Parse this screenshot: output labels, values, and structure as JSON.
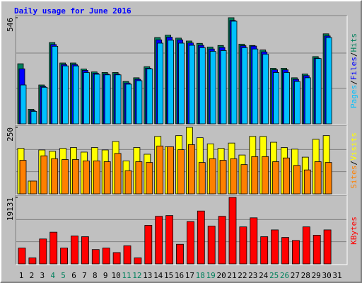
{
  "title": "Daily usage for June 2016",
  "legend_separator": "/",
  "categories": [
    "1",
    "2",
    "3",
    "4",
    "5",
    "6",
    "7",
    "8",
    "9",
    "10",
    "11",
    "12",
    "13",
    "14",
    "15",
    "16",
    "17",
    "18",
    "19",
    "20",
    "21",
    "22",
    "23",
    "24",
    "25",
    "26",
    "27",
    "28",
    "29",
    "30",
    "31"
  ],
  "category_colors": [
    "#000000",
    "#000000",
    "#000000",
    "#00805c",
    "#00805c",
    "#000000",
    "#000000",
    "#000000",
    "#000000",
    "#000000",
    "#00805c",
    "#00805c",
    "#000000",
    "#000000",
    "#000000",
    "#000000",
    "#000000",
    "#00805c",
    "#00805c",
    "#000000",
    "#000000",
    "#000000",
    "#000000",
    "#000000",
    "#00805c",
    "#00805c",
    "#000000",
    "#000000",
    "#000000",
    "#000000",
    "#000000"
  ],
  "chart_data": [
    {
      "type": "bar",
      "ylim": [
        0,
        546
      ],
      "yticks": [
        546
      ],
      "series": [
        {
          "name": "Hits",
          "color": "#00805c",
          "values": [
            309,
            75,
            200,
            418,
            313,
            313,
            282,
            267,
            264,
            264,
            218,
            237,
            294,
            444,
            456,
            441,
            426,
            414,
            395,
            403,
            546,
            410,
            403,
            380,
            286,
            286,
            237,
            256,
            346,
            463,
            null
          ]
        },
        {
          "name": "Files",
          "color": "#0000ff",
          "values": [
            283,
            68,
            192,
            408,
            305,
            305,
            275,
            260,
            256,
            256,
            210,
            229,
            286,
            432,
            446,
            432,
            416,
            404,
            385,
            393,
            532,
            402,
            400,
            370,
            278,
            278,
            229,
            248,
            338,
            452,
            null
          ]
        },
        {
          "name": "Pages",
          "color": "#00c0ff",
          "values": [
            200,
            64,
            188,
            399,
            298,
            298,
            264,
            255,
            252,
            252,
            204,
            222,
            283,
            415,
            430,
            415,
            404,
            392,
            373,
            377,
            528,
            392,
            385,
            358,
            264,
            264,
            218,
            237,
            336,
            444,
            null
          ]
        }
      ]
    },
    {
      "type": "bar",
      "ylim": [
        0,
        250
      ],
      "yticks": [
        250
      ],
      "series": [
        {
          "name": "Visits",
          "color": "#ffff00",
          "values": [
            171,
            48,
            165,
            160,
            171,
            174,
            157,
            174,
            165,
            197,
            124,
            174,
            149,
            216,
            177,
            219,
            250,
            211,
            188,
            171,
            191,
            146,
            216,
            216,
            194,
            174,
            168,
            138,
            205,
            219,
            null
          ]
        },
        {
          "name": "Sites",
          "color": "#ff8000",
          "values": [
            126,
            48,
            143,
            132,
            129,
            129,
            124,
            124,
            121,
            152,
            87,
            121,
            118,
            180,
            177,
            166,
            185,
            118,
            132,
            126,
            132,
            110,
            140,
            140,
            121,
            135,
            107,
            90,
            121,
            118,
            null
          ]
        }
      ]
    },
    {
      "type": "bar",
      "ylim": [
        0,
        19131
      ],
      "yticks": [
        19131
      ],
      "series": [
        {
          "name": "KBytes",
          "color": "#ff0000",
          "values": [
            4565,
            1739,
            7174,
            9130,
            4565,
            8043,
            7826,
            4130,
            4565,
            3261,
            5217,
            1739,
            11087,
            13696,
            13913,
            5652,
            12174,
            15217,
            10870,
            13696,
            19131,
            10652,
            13261,
            7826,
            9783,
            7609,
            6739,
            10652,
            8261,
            9783,
            null
          ]
        }
      ]
    }
  ]
}
